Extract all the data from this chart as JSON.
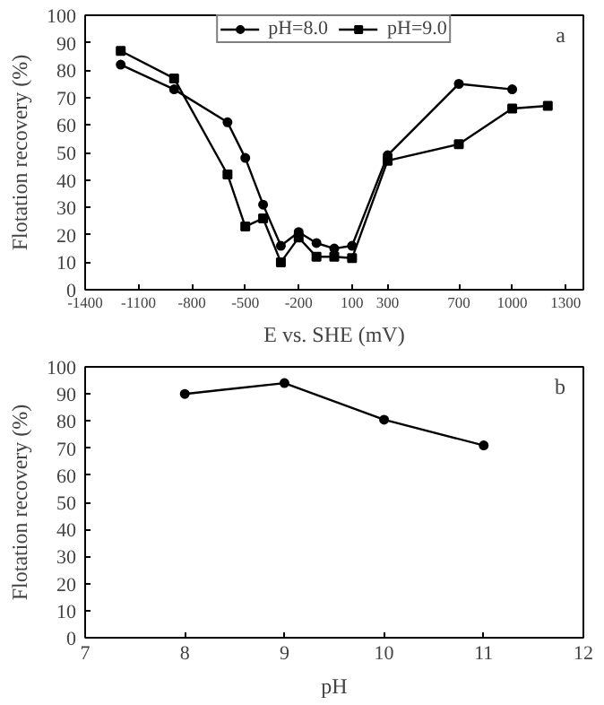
{
  "chart_data": [
    {
      "type": "line",
      "xlabel": "E vs. SHE (mV)",
      "ylabel": "Flotation recovery (%)",
      "annotations": [
        "a"
      ],
      "xlim": [
        -1400,
        1400
      ],
      "xticks": [
        -1400,
        -1100,
        -800,
        -500,
        -200,
        100,
        300,
        700,
        1000,
        1300
      ],
      "ylim": [
        0,
        100
      ],
      "yticks": [
        0,
        10,
        20,
        30,
        40,
        50,
        60,
        70,
        80,
        90,
        100
      ],
      "legend": "top",
      "grid": false,
      "series": [
        {
          "name": "pH=8.0",
          "color": "#000000",
          "marker": "circle",
          "x": [
            -1200,
            -900,
            -600,
            -500,
            -400,
            -300,
            -200,
            -100,
            0,
            100,
            300,
            700,
            1000
          ],
          "values": [
            82,
            73,
            61,
            48,
            31,
            16,
            21,
            17,
            15,
            16,
            49,
            75,
            73
          ]
        },
        {
          "name": "pH=9.0",
          "color": "#000000",
          "marker": "square",
          "x": [
            -1200,
            -900,
            -600,
            -500,
            -400,
            -300,
            -200,
            -100,
            0,
            100,
            300,
            700,
            1000,
            1200
          ],
          "values": [
            87,
            77,
            42,
            23,
            26,
            10,
            19,
            12,
            12,
            11.5,
            47,
            53,
            66,
            67
          ]
        }
      ]
    },
    {
      "type": "line",
      "xlabel": "pH",
      "ylabel": "Flotation recovery (%)",
      "annotations": [
        "b"
      ],
      "xlim": [
        7,
        12
      ],
      "xticks": [
        7,
        8,
        9,
        10,
        11,
        12
      ],
      "ylim": [
        0,
        100
      ],
      "yticks": [
        0,
        10,
        20,
        30,
        40,
        50,
        60,
        70,
        80,
        90,
        100
      ],
      "grid": false,
      "marker": "circle",
      "series": [
        {
          "color": "#000000",
          "x": [
            8,
            9,
            10,
            11
          ],
          "values": [
            90,
            94,
            80.5,
            71
          ]
        }
      ]
    }
  ]
}
